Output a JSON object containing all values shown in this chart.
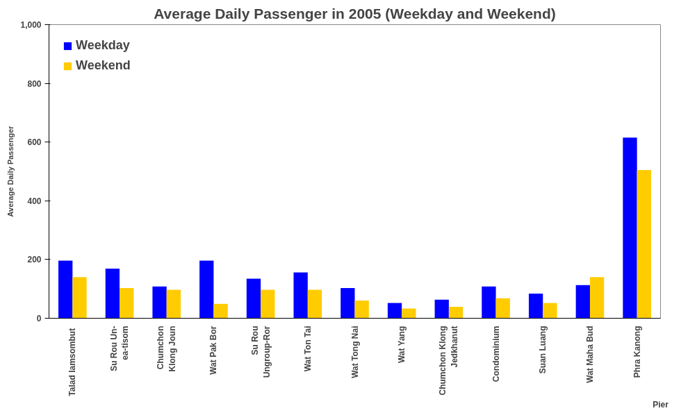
{
  "chart_data": {
    "type": "bar",
    "title": "Average Daily Passenger in 2005 (Weekday and Weekend)",
    "xlabel": "Pier",
    "ylabel": "Average Daily Passenger",
    "categories": [
      "Talad  Iamsombut",
      "Su Rou Un-ea-tisom",
      "Chumchon Klong Joun",
      "Wat Pak Bor",
      "Su Rou Ungroup-Ror",
      "Wat Ton Tai",
      "Wat Tong Nai",
      "Wat Yang",
      "Chumchon Klong Jedkhanut",
      "Condominium",
      "Suan Luang",
      "Wat Maha Bud",
      "Phra Kanong"
    ],
    "series": [
      {
        "name": "Weekday",
        "color": "#0000ff",
        "values": [
          196,
          169,
          108,
          196,
          135,
          156,
          103,
          52,
          63,
          108,
          84,
          113,
          615
        ]
      },
      {
        "name": "Weekend",
        "color": "#ffcc00",
        "values": [
          140,
          103,
          97,
          49,
          97,
          97,
          60,
          33,
          39,
          68,
          52,
          140,
          505
        ]
      }
    ],
    "ylim": [
      0,
      1000
    ],
    "yticks": [
      0,
      {
        "value": 200,
        "label": "200"
      },
      {
        "value": 400,
        "label": "400"
      },
      {
        "value": 600,
        "label": "600"
      },
      {
        "value": 800,
        "label": "800"
      },
      {
        "value": 1000,
        "label": "1,000"
      }
    ],
    "grid": false,
    "legend": "top left"
  }
}
